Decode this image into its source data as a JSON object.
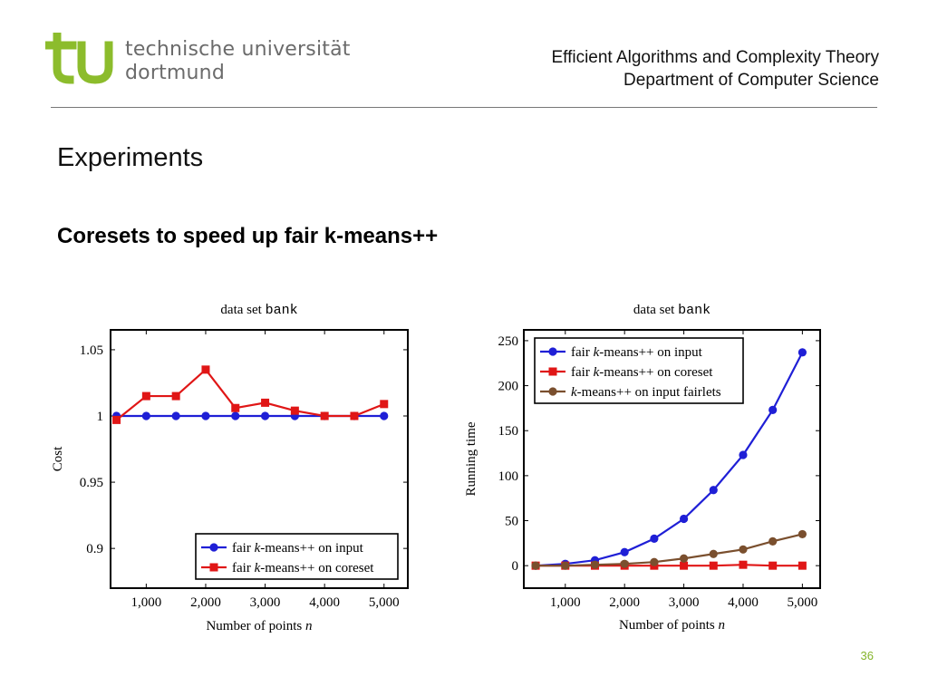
{
  "header": {
    "logo_line1": "technische universität",
    "logo_line2": "dortmund",
    "group": "Efficient Algorithms and Complexity Theory",
    "department": "Department of Computer Science",
    "brand_color": "#8cbc2c"
  },
  "slide": {
    "title": "Experiments",
    "subtitle": "Coresets to speed up fair k-means++",
    "page_number": "36"
  },
  "chart_data": [
    {
      "type": "line",
      "title_prefix": "data set ",
      "title_dataset": "bank",
      "xlabel_prefix": "Number of points ",
      "xlabel_var": "n",
      "ylabel": "Cost",
      "xlim": [
        400,
        5400
      ],
      "ylim": [
        0.87,
        1.065
      ],
      "xticks": [
        1000,
        2000,
        3000,
        4000,
        5000
      ],
      "xtick_labels": [
        "1,000",
        "2,000",
        "3,000",
        "4,000",
        "5,000"
      ],
      "yticks": [
        0.9,
        0.95,
        1,
        1.05
      ],
      "ytick_labels": [
        "0.9",
        "0.95",
        "1",
        "1.05"
      ],
      "x": [
        500,
        1000,
        1500,
        2000,
        2500,
        3000,
        3500,
        4000,
        4500,
        5000
      ],
      "legend": "bottom-right",
      "series": [
        {
          "name_pre": "fair ",
          "name_var": "k",
          "name_post": "-means++ on input",
          "color": "#1f1fd6",
          "marker": "circle",
          "values": [
            1,
            1,
            1,
            1,
            1,
            1,
            1,
            1,
            1,
            1
          ]
        },
        {
          "name_pre": "fair ",
          "name_var": "k",
          "name_post": "-means++ on coreset",
          "color": "#e01616",
          "marker": "square",
          "values": [
            0.997,
            1.015,
            1.015,
            1.035,
            1.006,
            1.01,
            1.004,
            1.0,
            1.0,
            1.009
          ]
        }
      ]
    },
    {
      "type": "line",
      "title_prefix": "data set ",
      "title_dataset": "bank",
      "xlabel_prefix": "Number of points ",
      "xlabel_var": "n",
      "ylabel": "Running time",
      "xlim": [
        300,
        5300
      ],
      "ylim": [
        -25,
        262
      ],
      "xticks": [
        1000,
        2000,
        3000,
        4000,
        5000
      ],
      "xtick_labels": [
        "1,000",
        "2,000",
        "3,000",
        "4,000",
        "5,000"
      ],
      "yticks": [
        0,
        50,
        100,
        150,
        200,
        250
      ],
      "ytick_labels": [
        "0",
        "50",
        "100",
        "150",
        "200",
        "250"
      ],
      "x": [
        500,
        1000,
        1500,
        2000,
        2500,
        3000,
        3500,
        4000,
        4500,
        5000
      ],
      "legend": "top-left",
      "series": [
        {
          "name_pre": "fair ",
          "name_var": "k",
          "name_post": "-means++ on input",
          "color": "#1f1fd6",
          "marker": "circle",
          "values": [
            0,
            2,
            6,
            15,
            30,
            52,
            84,
            123,
            173,
            237
          ]
        },
        {
          "name_pre": "fair ",
          "name_var": "k",
          "name_post": "-means++ on coreset",
          "color": "#e01616",
          "marker": "square",
          "values": [
            0,
            0,
            0,
            0,
            0,
            0,
            0,
            1,
            0,
            0
          ]
        },
        {
          "name_pre": "",
          "name_var": "k",
          "name_post": "-means++ on input fairlets",
          "color": "#7a4f2e",
          "marker": "circle",
          "values": [
            0,
            0,
            1,
            2,
            4,
            8,
            13,
            18,
            27,
            35
          ]
        }
      ]
    }
  ]
}
